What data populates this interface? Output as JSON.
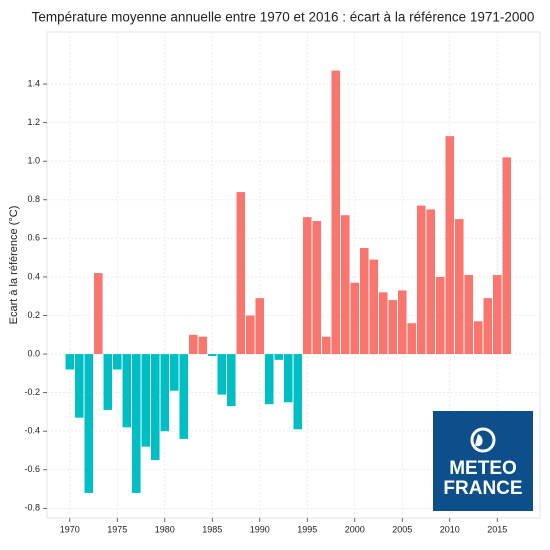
{
  "chart_data": {
    "type": "bar",
    "title": "Température moyenne annuelle entre 1970 et 2016 : écart à la référence 1971-2000",
    "y_label": "Ecart à la référence (°C)",
    "x": [
      1970,
      1971,
      1972,
      1973,
      1974,
      1975,
      1976,
      1977,
      1978,
      1979,
      1980,
      1981,
      1982,
      1983,
      1984,
      1985,
      1986,
      1987,
      1988,
      1989,
      1990,
      1991,
      1992,
      1993,
      1994,
      1995,
      1996,
      1997,
      1998,
      1999,
      2000,
      2001,
      2002,
      2003,
      2004,
      2005,
      2006,
      2007,
      2008,
      2009,
      2010,
      2011,
      2012,
      2013,
      2014,
      2015,
      2016
    ],
    "values": [
      -0.08,
      -0.33,
      -0.72,
      0.42,
      -0.29,
      -0.08,
      -0.38,
      -0.72,
      -0.48,
      -0.55,
      -0.4,
      -0.19,
      -0.44,
      0.1,
      0.09,
      -0.01,
      -0.21,
      -0.27,
      0.84,
      0.2,
      0.29,
      -0.26,
      -0.03,
      -0.25,
      -0.39,
      0.71,
      0.69,
      0.09,
      1.47,
      0.72,
      0.37,
      0.55,
      0.49,
      0.32,
      0.28,
      0.33,
      0.16,
      0.77,
      0.75,
      0.4,
      1.13,
      0.7,
      0.41,
      0.17,
      0.29,
      0.41,
      1.02
    ],
    "positive_color": "#f8766d",
    "negative_color": "#00bfc4",
    "xlim": [
      1967.6,
      2019.5
    ],
    "xticks": [
      1970,
      1975,
      1980,
      1985,
      1990,
      1995,
      2000,
      2005,
      2010,
      2015
    ],
    "ylim": [
      -0.85,
      1.67
    ],
    "yticks": [
      {
        "value": -0.8,
        "label": "-0.8"
      },
      -0.6,
      -0.4,
      -0.2,
      {
        "value": 0,
        "label": "0.0"
      },
      0.2,
      0.4,
      0.6,
      0.8,
      {
        "value": 1,
        "label": "1.0"
      },
      1.2,
      1.4
    ],
    "grid": true
  },
  "logo": [
    "METEO",
    "FRANCE"
  ]
}
